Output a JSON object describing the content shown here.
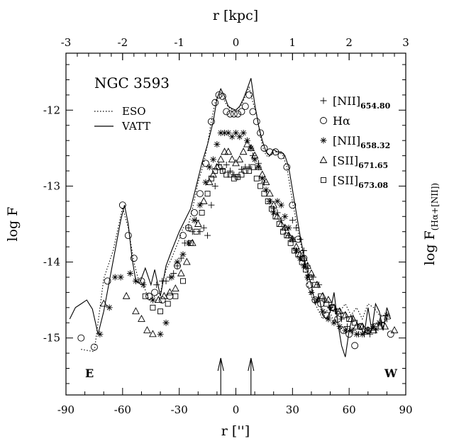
{
  "chart_data": {
    "type": "scatter",
    "title": "NGC 3593",
    "xlabel": "r ['']",
    "ylabel": "log F",
    "top_xlabel": "r [kpc]",
    "right_ylabel_main": "log F",
    "right_ylabel_sub": "(Hα+[NII])",
    "xlim": [
      -90,
      90
    ],
    "ylim": [
      -15.75,
      -11.25
    ],
    "top_xlim": [
      -3,
      3
    ],
    "x_ticks": [
      "-90",
      "-60",
      "-30",
      "0",
      "30",
      "60",
      "90"
    ],
    "y_ticks": [
      "-15",
      "-14",
      "-13",
      "-12"
    ],
    "top_ticks": [
      "-3",
      "-2",
      "-1",
      "0",
      "1",
      "2",
      "3"
    ],
    "direction_left": "E",
    "direction_right": "W",
    "arrow_positions_x": [
      -8,
      8
    ],
    "grid": false,
    "line_legend": [
      {
        "name": "ESO",
        "style": "dotted"
      },
      {
        "name": "VATT",
        "style": "solid"
      }
    ],
    "series": [
      {
        "name": "ESO",
        "kind": "line",
        "style": "dotted",
        "x": [
          -82,
          -75,
          -70,
          -65,
          -60,
          -57,
          -54,
          -52,
          -49,
          -46,
          -43,
          -40,
          -37,
          -34,
          -30,
          -28,
          -25,
          -23,
          -20,
          -17,
          -15,
          -13,
          -11,
          -9,
          -7,
          -5,
          -3,
          -1,
          1,
          3,
          5,
          7,
          9,
          11,
          13,
          15,
          17,
          19,
          21,
          23,
          25,
          27,
          30,
          33,
          36,
          38,
          40,
          43,
          46,
          49,
          52,
          55,
          58,
          61,
          64,
          67,
          70,
          73,
          76,
          80
        ],
        "y": [
          -15.15,
          -15.18,
          -14.22,
          -13.85,
          -13.28,
          -13.55,
          -14.0,
          -14.2,
          -14.3,
          -14.5,
          -14.45,
          -14.4,
          -14.1,
          -13.95,
          -13.7,
          -13.55,
          -13.5,
          -13.3,
          -12.95,
          -12.7,
          -12.45,
          -12.15,
          -11.9,
          -11.78,
          -11.82,
          -11.93,
          -11.98,
          -12.0,
          -11.98,
          -11.93,
          -11.82,
          -11.7,
          -11.9,
          -12.05,
          -12.35,
          -12.55,
          -12.62,
          -12.58,
          -12.55,
          -12.55,
          -12.6,
          -12.75,
          -13.2,
          -13.6,
          -13.95,
          -14.3,
          -14.45,
          -14.6,
          -14.75,
          -14.6,
          -14.8,
          -14.65,
          -14.55,
          -14.7,
          -14.6,
          -14.75,
          -14.55,
          -14.6,
          -14.7,
          -14.7
        ]
      },
      {
        "name": "VATT",
        "kind": "line",
        "style": "solid",
        "x": [
          -88,
          -85,
          -82,
          -79,
          -76,
          -73,
          -70,
          -67,
          -64,
          -61,
          -59,
          -57,
          -55,
          -53,
          -51,
          -48,
          -45,
          -43,
          -40,
          -37,
          -34,
          -30,
          -27,
          -24,
          -21,
          -18,
          -15,
          -12,
          -10,
          -8,
          -6,
          -4,
          -2,
          0,
          2,
          4,
          6,
          8,
          10,
          12,
          14,
          16,
          18,
          20,
          22,
          24,
          26,
          28,
          31,
          34,
          37,
          40,
          42,
          44,
          46,
          48,
          50,
          52,
          54,
          56,
          58,
          60,
          62,
          64,
          66,
          68,
          70,
          72,
          74,
          76,
          78,
          80,
          82
        ],
        "y": [
          -14.75,
          -14.6,
          -14.55,
          -14.5,
          -14.62,
          -14.95,
          -14.65,
          -14.25,
          -13.85,
          -13.45,
          -13.25,
          -13.5,
          -13.95,
          -14.25,
          -14.28,
          -14.08,
          -14.3,
          -14.1,
          -14.45,
          -14.05,
          -13.85,
          -13.6,
          -13.45,
          -13.3,
          -13.0,
          -12.7,
          -12.45,
          -12.15,
          -11.85,
          -11.72,
          -11.82,
          -11.95,
          -11.98,
          -12.0,
          -11.95,
          -11.85,
          -11.72,
          -11.58,
          -11.92,
          -12.2,
          -12.4,
          -12.55,
          -12.6,
          -12.52,
          -12.55,
          -12.55,
          -12.6,
          -12.75,
          -13.2,
          -13.65,
          -14.05,
          -14.3,
          -14.55,
          -14.45,
          -14.7,
          -14.75,
          -14.65,
          -14.4,
          -14.8,
          -15.1,
          -15.25,
          -14.9,
          -14.7,
          -14.8,
          -14.85,
          -14.95,
          -14.6,
          -14.9,
          -14.55,
          -14.65,
          -14.9,
          -14.6,
          -14.75
        ]
      },
      {
        "name": "[NII]654.80",
        "kind": "points",
        "marker": "plus",
        "x": [
          -42,
          -39,
          -37,
          -35,
          -33,
          -31,
          -29,
          -27,
          -25,
          -23,
          -21,
          -19,
          -17,
          -15,
          -13,
          -11,
          -9,
          -7,
          -5,
          -3,
          -1,
          1,
          3,
          5,
          7,
          9,
          12,
          15,
          18,
          20,
          22,
          24,
          26,
          28,
          30,
          32,
          34,
          36,
          38,
          41,
          44,
          47,
          50,
          53,
          56,
          59,
          62,
          65,
          68,
          71,
          74,
          77,
          80
        ],
        "y": [
          -14.3,
          -14.25,
          -14.25,
          -14.2,
          -14.15,
          -14.05,
          -13.95,
          -13.75,
          -13.55,
          -13.6,
          -13.45,
          -13.6,
          -13.55,
          -13.65,
          -13.25,
          -13.0,
          -12.72,
          -12.78,
          -12.72,
          -12.8,
          -12.85,
          -12.88,
          -12.78,
          -12.75,
          -12.75,
          -12.6,
          -12.7,
          -12.95,
          -13.2,
          -13.3,
          -13.35,
          -13.45,
          -13.55,
          -13.65,
          -13.45,
          -13.55,
          -13.7,
          -13.85,
          -14.05,
          -14.2,
          -14.3,
          -14.5,
          -14.6,
          -14.65,
          -14.75,
          -14.85,
          -14.9,
          -14.95,
          -14.95,
          -14.95,
          -14.9,
          -14.8,
          -14.75
        ]
      },
      {
        "name": "Hα",
        "kind": "points",
        "marker": "circle",
        "x": [
          -82,
          -75,
          -68,
          -60,
          -57,
          -54,
          -50,
          -46,
          -43,
          -39,
          -35,
          -31,
          -28,
          -25,
          -22,
          -19,
          -16,
          -13,
          -11,
          -9,
          -7,
          -5,
          -3,
          -1,
          1,
          3,
          5,
          7,
          9,
          11,
          13,
          15,
          18,
          21,
          24,
          27,
          30,
          33,
          36,
          39,
          42,
          45,
          48,
          51,
          54,
          57,
          60,
          63,
          66,
          70,
          74,
          78,
          82
        ],
        "y": [
          -15.0,
          -15.12,
          -14.25,
          -13.25,
          -13.65,
          -13.95,
          -14.25,
          -14.45,
          -14.4,
          -14.5,
          -14.45,
          -14.05,
          -13.65,
          -13.55,
          -13.35,
          -13.1,
          -12.7,
          -12.15,
          -11.9,
          -11.8,
          -11.82,
          -12.02,
          -12.05,
          -12.05,
          -12.05,
          -12.02,
          -11.95,
          -11.8,
          -12.02,
          -12.15,
          -12.3,
          -12.5,
          -12.55,
          -12.55,
          -12.6,
          -12.75,
          -13.25,
          -13.7,
          -13.95,
          -14.3,
          -14.5,
          -14.55,
          -14.7,
          -14.6,
          -14.75,
          -14.9,
          -14.95,
          -15.1,
          -14.85,
          -14.9,
          -14.85,
          -14.75,
          -14.95
        ]
      },
      {
        "name": "[NII]658.32",
        "kind": "points",
        "marker": "asterisk",
        "x": [
          -72,
          -67,
          -64,
          -61,
          -56,
          -53,
          -49,
          -44,
          -40,
          -37,
          -34,
          -31,
          -28,
          -25,
          -22,
          -19,
          -16,
          -14,
          -12,
          -10,
          -8,
          -6,
          -4,
          -2,
          0,
          2,
          4,
          6,
          8,
          10,
          12,
          14,
          16,
          18,
          20,
          22,
          24,
          26,
          28,
          30,
          32,
          34,
          36,
          38,
          40,
          43,
          46,
          49,
          52,
          55,
          58,
          61,
          64,
          67,
          70,
          73,
          76,
          80
        ],
        "y": [
          -14.95,
          -14.6,
          -14.2,
          -14.2,
          -14.15,
          -14.25,
          -14.3,
          -14.5,
          -14.95,
          -14.8,
          -14.2,
          -14.0,
          -13.9,
          -13.75,
          -13.45,
          -13.25,
          -12.95,
          -12.75,
          -12.65,
          -12.45,
          -12.3,
          -12.3,
          -12.3,
          -12.35,
          -12.3,
          -12.35,
          -12.3,
          -12.4,
          -12.5,
          -12.65,
          -12.75,
          -12.9,
          -13.05,
          -13.2,
          -13.35,
          -13.2,
          -13.25,
          -13.4,
          -13.55,
          -13.7,
          -13.85,
          -13.95,
          -14.05,
          -14.2,
          -14.4,
          -14.5,
          -14.65,
          -14.75,
          -14.8,
          -14.85,
          -14.9,
          -14.9,
          -14.95,
          -14.95,
          -14.9,
          -14.85,
          -14.8,
          -14.7
        ]
      },
      {
        "name": "[SII]671.65",
        "kind": "points",
        "marker": "triangle",
        "x": [
          -70,
          -58,
          -53,
          -50,
          -47,
          -44,
          -41,
          -38,
          -35,
          -32,
          -29,
          -26,
          -23,
          -20,
          -17,
          -14,
          -12,
          -10,
          -8,
          -6,
          -4,
          -2,
          0,
          2,
          4,
          6,
          8,
          10,
          12,
          14,
          16,
          18,
          20,
          22,
          24,
          26,
          28,
          30,
          32,
          34,
          36,
          38,
          40,
          43,
          46,
          49,
          52,
          55,
          58,
          61,
          64,
          67,
          70,
          73,
          76,
          79,
          84
        ],
        "y": [
          -14.55,
          -14.45,
          -14.65,
          -14.75,
          -14.9,
          -14.95,
          -14.5,
          -14.45,
          -14.4,
          -14.35,
          -14.15,
          -14.0,
          -13.75,
          -13.5,
          -13.2,
          -12.95,
          -12.85,
          -12.75,
          -12.65,
          -12.55,
          -12.55,
          -12.65,
          -12.7,
          -12.65,
          -12.55,
          -12.45,
          -12.5,
          -12.6,
          -12.75,
          -12.85,
          -12.95,
          -13.1,
          -13.25,
          -13.4,
          -13.5,
          -13.55,
          -13.65,
          -13.7,
          -13.8,
          -13.9,
          -13.95,
          -14.05,
          -14.15,
          -14.3,
          -14.45,
          -14.5,
          -14.6,
          -14.65,
          -14.7,
          -14.75,
          -14.85,
          -14.85,
          -14.9,
          -14.9,
          -14.85,
          -14.85,
          -14.9
        ]
      },
      {
        "name": "[SII]673.08",
        "kind": "points",
        "marker": "square",
        "x": [
          -48,
          -44,
          -40,
          -36,
          -32,
          -28,
          -24,
          -21,
          -18,
          -15,
          -13,
          -11,
          -9,
          -7,
          -5,
          -3,
          -1,
          1,
          3,
          5,
          7,
          9,
          11,
          13,
          15,
          17,
          19,
          21,
          23,
          25,
          27,
          29,
          31,
          33,
          35,
          37,
          39,
          42,
          45,
          48,
          51,
          54,
          57,
          60,
          63,
          66
        ],
        "y": [
          -14.45,
          -14.6,
          -14.65,
          -14.55,
          -14.45,
          -14.25,
          -13.75,
          -13.6,
          -13.35,
          -13.1,
          -12.9,
          -12.8,
          -12.75,
          -12.8,
          -12.85,
          -12.85,
          -12.9,
          -12.88,
          -12.85,
          -12.8,
          -12.8,
          -12.75,
          -12.9,
          -13.0,
          -13.1,
          -13.2,
          -13.3,
          -13.4,
          -13.5,
          -13.6,
          -13.65,
          -13.75,
          -13.85,
          -13.9,
          -14.0,
          -14.1,
          -14.2,
          -14.3,
          -14.45,
          -14.55,
          -14.6,
          -14.65,
          -14.7,
          -14.75,
          -14.8,
          -14.85
        ]
      }
    ],
    "legend": [
      {
        "name": "[NII]",
        "sub": "654.80",
        "marker": "plus"
      },
      {
        "name": "Hα",
        "sub": "",
        "marker": "circle"
      },
      {
        "name": "[NII]",
        "sub": "658.32",
        "marker": "asterisk"
      },
      {
        "name": "[SII]",
        "sub": "671.65",
        "marker": "triangle"
      },
      {
        "name": "[SII]",
        "sub": "673.08",
        "marker": "square"
      }
    ]
  }
}
